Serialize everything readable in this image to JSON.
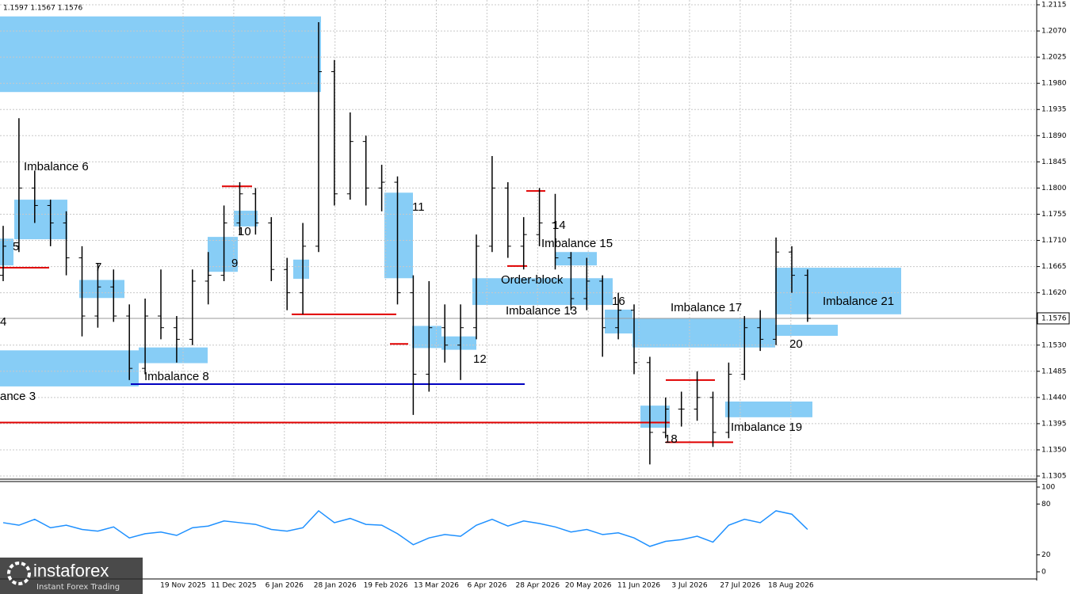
{
  "chart_data": {
    "type": "ohlc",
    "header": "1.1597 1.1567 1.1576",
    "bar_color": "#000000",
    "open": [
      1.165,
      1.17,
      1.18,
      1.177,
      1.174,
      1.168,
      1.158,
      1.163,
      1.158,
      1.149,
      1.158,
      1.156,
      1.154,
      1.164,
      1.165,
      1.174,
      1.179,
      1.174,
      1.166,
      1.162,
      1.17,
      1.2,
      1.179,
      1.188,
      1.18,
      1.181,
      1.162,
      1.148,
      1.156,
      1.153,
      1.156,
      1.17,
      1.18,
      1.17,
      1.172,
      1.174,
      1.168,
      1.161,
      1.164,
      1.156,
      1.159,
      1.15,
      1.138,
      1.142,
      1.142,
      1.144,
      1.138,
      1.148,
      1.156,
      1.154,
      1.169,
      1.165
    ],
    "high": [
      1.1735,
      1.192,
      1.183,
      1.178,
      1.176,
      1.17,
      1.167,
      1.166,
      1.16,
      1.161,
      1.166,
      1.158,
      1.166,
      1.169,
      1.177,
      1.181,
      1.18,
      1.175,
      1.168,
      1.174,
      1.2085,
      1.202,
      1.193,
      1.189,
      1.184,
      1.182,
      1.165,
      1.164,
      1.16,
      1.16,
      1.172,
      1.1855,
      1.181,
      1.175,
      1.18,
      1.179,
      1.169,
      1.168,
      1.165,
      1.162,
      1.16,
      1.151,
      1.144,
      1.145,
      1.1485,
      1.145,
      1.15,
      1.158,
      1.159,
      1.1715,
      1.17,
      1.166
    ],
    "low": [
      1.164,
      1.169,
      1.174,
      1.17,
      1.165,
      1.1545,
      1.156,
      1.157,
      1.147,
      1.148,
      1.154,
      1.15,
      1.153,
      1.16,
      1.164,
      1.172,
      1.172,
      1.164,
      1.159,
      1.1583,
      1.169,
      1.177,
      1.178,
      1.177,
      1.176,
      1.16,
      1.141,
      1.145,
      1.15,
      1.147,
      1.154,
      1.169,
      1.168,
      1.166,
      1.17,
      1.166,
      1.159,
      1.159,
      1.151,
      1.154,
      1.148,
      1.1325,
      1.137,
      1.139,
      1.14,
      1.1355,
      1.137,
      1.147,
      1.152,
      1.153,
      1.162,
      1.157
    ],
    "close": [
      1.17,
      1.18,
      1.177,
      1.174,
      1.168,
      1.158,
      1.163,
      1.158,
      1.149,
      1.158,
      1.156,
      1.154,
      1.164,
      1.165,
      1.174,
      1.179,
      1.174,
      1.166,
      1.162,
      1.17,
      1.2,
      1.179,
      1.188,
      1.18,
      1.181,
      1.162,
      1.148,
      1.156,
      1.153,
      1.156,
      1.17,
      1.18,
      1.17,
      1.172,
      1.174,
      1.168,
      1.161,
      1.164,
      1.156,
      1.159,
      1.15,
      1.138,
      1.142,
      1.142,
      1.144,
      1.138,
      1.148,
      1.156,
      1.154,
      1.169,
      1.165,
      1.1576
    ],
    "ylim": [
      1.12996,
      1.21232
    ],
    "yticks": [
      {
        "value": 1.2115,
        "label": "1.2115"
      },
      {
        "value": 1.207,
        "label": "1.2070"
      },
      {
        "value": 1.2025,
        "label": "1.2025"
      },
      {
        "value": 1.198,
        "label": "1.1980"
      },
      {
        "value": 1.1935,
        "label": "1.1935"
      },
      {
        "value": 1.189,
        "label": "1.1890"
      },
      {
        "value": 1.1845,
        "label": "1.1845"
      },
      {
        "value": 1.18,
        "label": "1.1800"
      },
      {
        "value": 1.1755,
        "label": "1.1755"
      },
      {
        "value": 1.171,
        "label": "1.1710"
      },
      {
        "value": 1.1665,
        "label": "1.1665"
      },
      {
        "value": 1.162,
        "label": "1.1620"
      },
      {
        "value": 1.153,
        "label": "1.1530"
      },
      {
        "value": 1.1485,
        "label": "1.1485"
      },
      {
        "value": 1.144,
        "label": "1.1440"
      },
      {
        "value": 1.1395,
        "label": "1.1395"
      },
      {
        "value": 1.135,
        "label": "1.1350"
      },
      {
        "value": 1.1305,
        "label": "1.1305"
      }
    ],
    "current_price": {
      "value": 1.1576,
      "label": "1.1576"
    },
    "xticks": [
      "19 Nov 2025",
      "11 Dec 2025",
      "6 Jan 2026",
      "28 Jan 2026",
      "19 Feb 2026",
      "13 Mar 2026",
      "6 Apr 2026",
      "28 Apr 2026",
      "20 May 2026",
      "11 Jun 2026",
      "3 Jul 2026",
      "27 Jul 2026",
      "18 Aug 2026"
    ],
    "grid": true,
    "zone_color": "#87cdf6",
    "zones": [
      {
        "top": 1.2095,
        "bottom": 1.1965
      },
      {
        "top": 1.178,
        "bottom": 1.1712
      },
      {
        "top": 1.1713,
        "bottom": 1.1667
      },
      {
        "top": 1.1642,
        "bottom": 1.1611
      },
      {
        "top": 1.1521,
        "bottom": 1.1459
      },
      {
        "top": 1.1526,
        "bottom": 1.1499
      },
      {
        "top": 1.1716,
        "bottom": 1.1656
      },
      {
        "top": 1.1761,
        "bottom": 1.1734
      },
      {
        "top": 1.1677,
        "bottom": 1.1644
      },
      {
        "top": 1.1792,
        "bottom": 1.1645
      },
      {
        "top": 1.1563,
        "bottom": 1.1525
      },
      {
        "top": 1.1545,
        "bottom": 1.1522
      },
      {
        "top": 1.1645,
        "bottom": 1.1599
      },
      {
        "top": 1.169,
        "bottom": 1.1667
      },
      {
        "top": 1.1591,
        "bottom": 1.155
      },
      {
        "top": 1.1576,
        "bottom": 1.1526
      },
      {
        "top": 1.1663,
        "bottom": 1.1583
      },
      {
        "top": 1.1565,
        "bottom": 1.1546
      },
      {
        "top": 1.1433,
        "bottom": 1.1406
      },
      {
        "top": 1.1426,
        "bottom": 1.1388
      }
    ],
    "levels": [
      {
        "price": 1.1397,
        "color": "#e00000"
      },
      {
        "price": 1.1663,
        "color": "#e00000"
      },
      {
        "price": 1.1463,
        "color": "#0000c0"
      },
      {
        "price": 1.1583,
        "color": "#e00000"
      },
      {
        "price": 1.1803,
        "color": "#e00000"
      },
      {
        "price": 1.1532,
        "color": "#e00000"
      },
      {
        "price": 1.147,
        "color": "#e00000"
      },
      {
        "price": 1.1363,
        "color": "#e00000"
      },
      {
        "price": 1.1666,
        "color": "#e00000"
      },
      {
        "price": 1.1795,
        "color": "#e00000"
      }
    ],
    "annotations": [
      "Imbalance 6",
      "5",
      "7",
      "ance 3",
      "4",
      "9",
      "10",
      "Imbalance 8",
      "11",
      "12",
      "14",
      "Imbalance 15",
      "Order-block",
      "Imbalance 13",
      "16",
      "Imbalance 17",
      "18",
      "Imbalance 19",
      "20",
      "Imbalance 21"
    ],
    "oscillator": {
      "color": "#1e90ff",
      "values": [
        58,
        55,
        62,
        52,
        55,
        50,
        48,
        53,
        40,
        45,
        47,
        43,
        52,
        54,
        60,
        58,
        56,
        50,
        48,
        52,
        72,
        58,
        63,
        56,
        55,
        45,
        32,
        40,
        44,
        42,
        55,
        62,
        54,
        60,
        57,
        53,
        47,
        50,
        44,
        46,
        40,
        30,
        36,
        38,
        42,
        35,
        55,
        62,
        58,
        72,
        68,
        50
      ],
      "ylim": [
        0,
        100
      ],
      "yticks": [
        100,
        80,
        20,
        0
      ]
    },
    "branding": {
      "logo": "instaforex",
      "tagline": "Instant Forex Trading"
    }
  }
}
